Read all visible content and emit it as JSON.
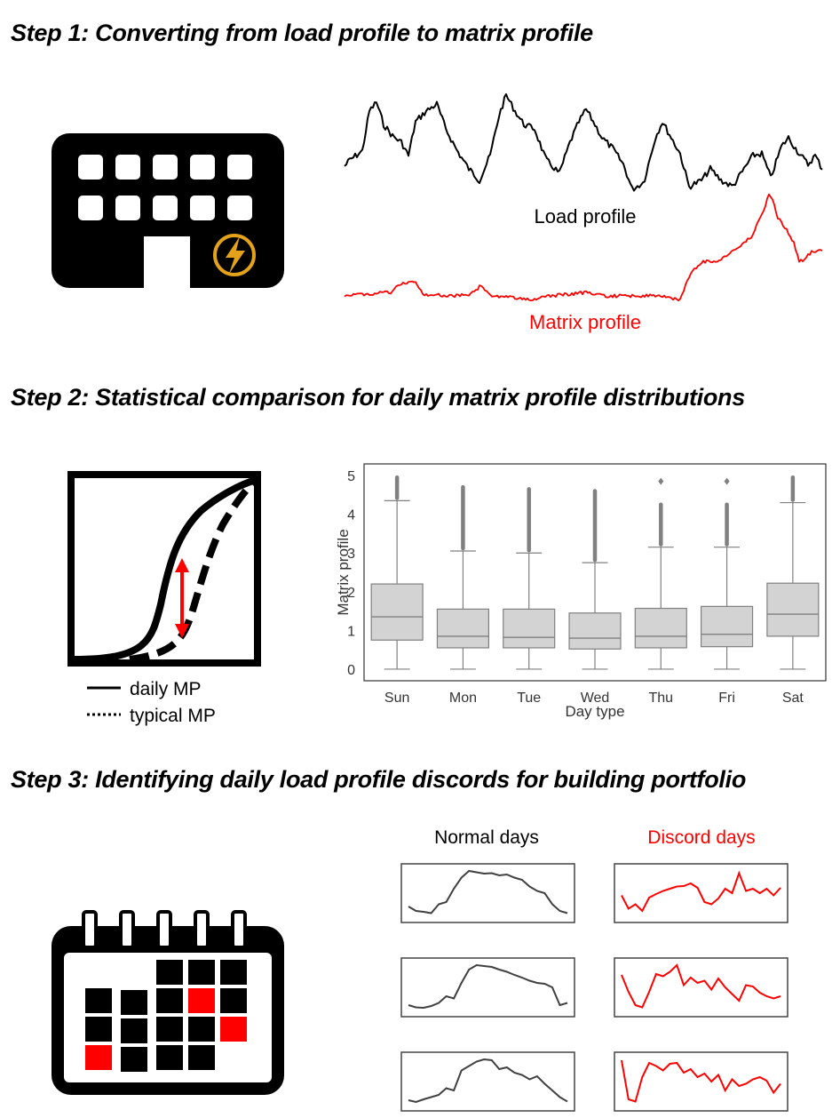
{
  "steps": [
    {
      "title": "Step 1: Converting from load profile to matrix profile"
    },
    {
      "title": "Step 2: Statistical comparison for daily matrix profile distributions"
    },
    {
      "title": "Step 3: Identifying daily load profile discords for building portfolio"
    }
  ],
  "step1": {
    "icon": "building-electricity-icon",
    "load_label": "Load profile",
    "matrix_label": "Matrix profile",
    "colors": {
      "load": "#000000",
      "matrix": "#ff0000",
      "bolt": "#e3a21a"
    }
  },
  "step2": {
    "icon": "cdf-comparison-icon",
    "legend": [
      {
        "label": "daily MP",
        "style": "solid"
      },
      {
        "label": "typical MP",
        "style": "dotted"
      }
    ],
    "chart_data": {
      "type": "box",
      "xlabel": "Day type",
      "ylabel": "Matrix profile",
      "ylim": [
        -0.3,
        5.3
      ],
      "yticks": [
        0,
        1,
        2,
        3,
        4,
        5
      ],
      "categories": [
        "Sun",
        "Mon",
        "Tue",
        "Wed",
        "Thu",
        "Fri",
        "Sat"
      ],
      "boxes": [
        {
          "min": 0,
          "q1": 0.75,
          "median": 1.35,
          "q3": 2.2,
          "whisker_high": 4.35,
          "outlier_max": 4.95,
          "outlier_dense": true
        },
        {
          "min": 0,
          "q1": 0.55,
          "median": 0.85,
          "q3": 1.55,
          "whisker_high": 3.05,
          "outlier_max": 4.7,
          "outlier_dense": true
        },
        {
          "min": 0,
          "q1": 0.55,
          "median": 0.82,
          "q3": 1.55,
          "whisker_high": 3.0,
          "outlier_max": 4.65,
          "outlier_dense": true
        },
        {
          "min": 0,
          "q1": 0.52,
          "median": 0.8,
          "q3": 1.45,
          "whisker_high": 2.75,
          "outlier_max": 4.6,
          "outlier_dense": true
        },
        {
          "min": 0,
          "q1": 0.55,
          "median": 0.85,
          "q3": 1.57,
          "whisker_high": 3.15,
          "outlier_max": 4.85,
          "outlier_dense": false
        },
        {
          "min": 0,
          "q1": 0.58,
          "median": 0.9,
          "q3": 1.62,
          "whisker_high": 3.15,
          "outlier_max": 4.85,
          "outlier_dense": false
        },
        {
          "min": 0,
          "q1": 0.85,
          "median": 1.42,
          "q3": 2.22,
          "whisker_high": 4.3,
          "outlier_max": 4.95,
          "outlier_dense": true
        }
      ],
      "colors": {
        "box": "#d3d3d3",
        "line": "#808080"
      }
    }
  },
  "step3": {
    "icon": "calendar-icon",
    "normal_label": "Normal days",
    "discord_label": "Discord days",
    "colors": {
      "normal": "#404040",
      "discord": "#ff0000"
    }
  }
}
